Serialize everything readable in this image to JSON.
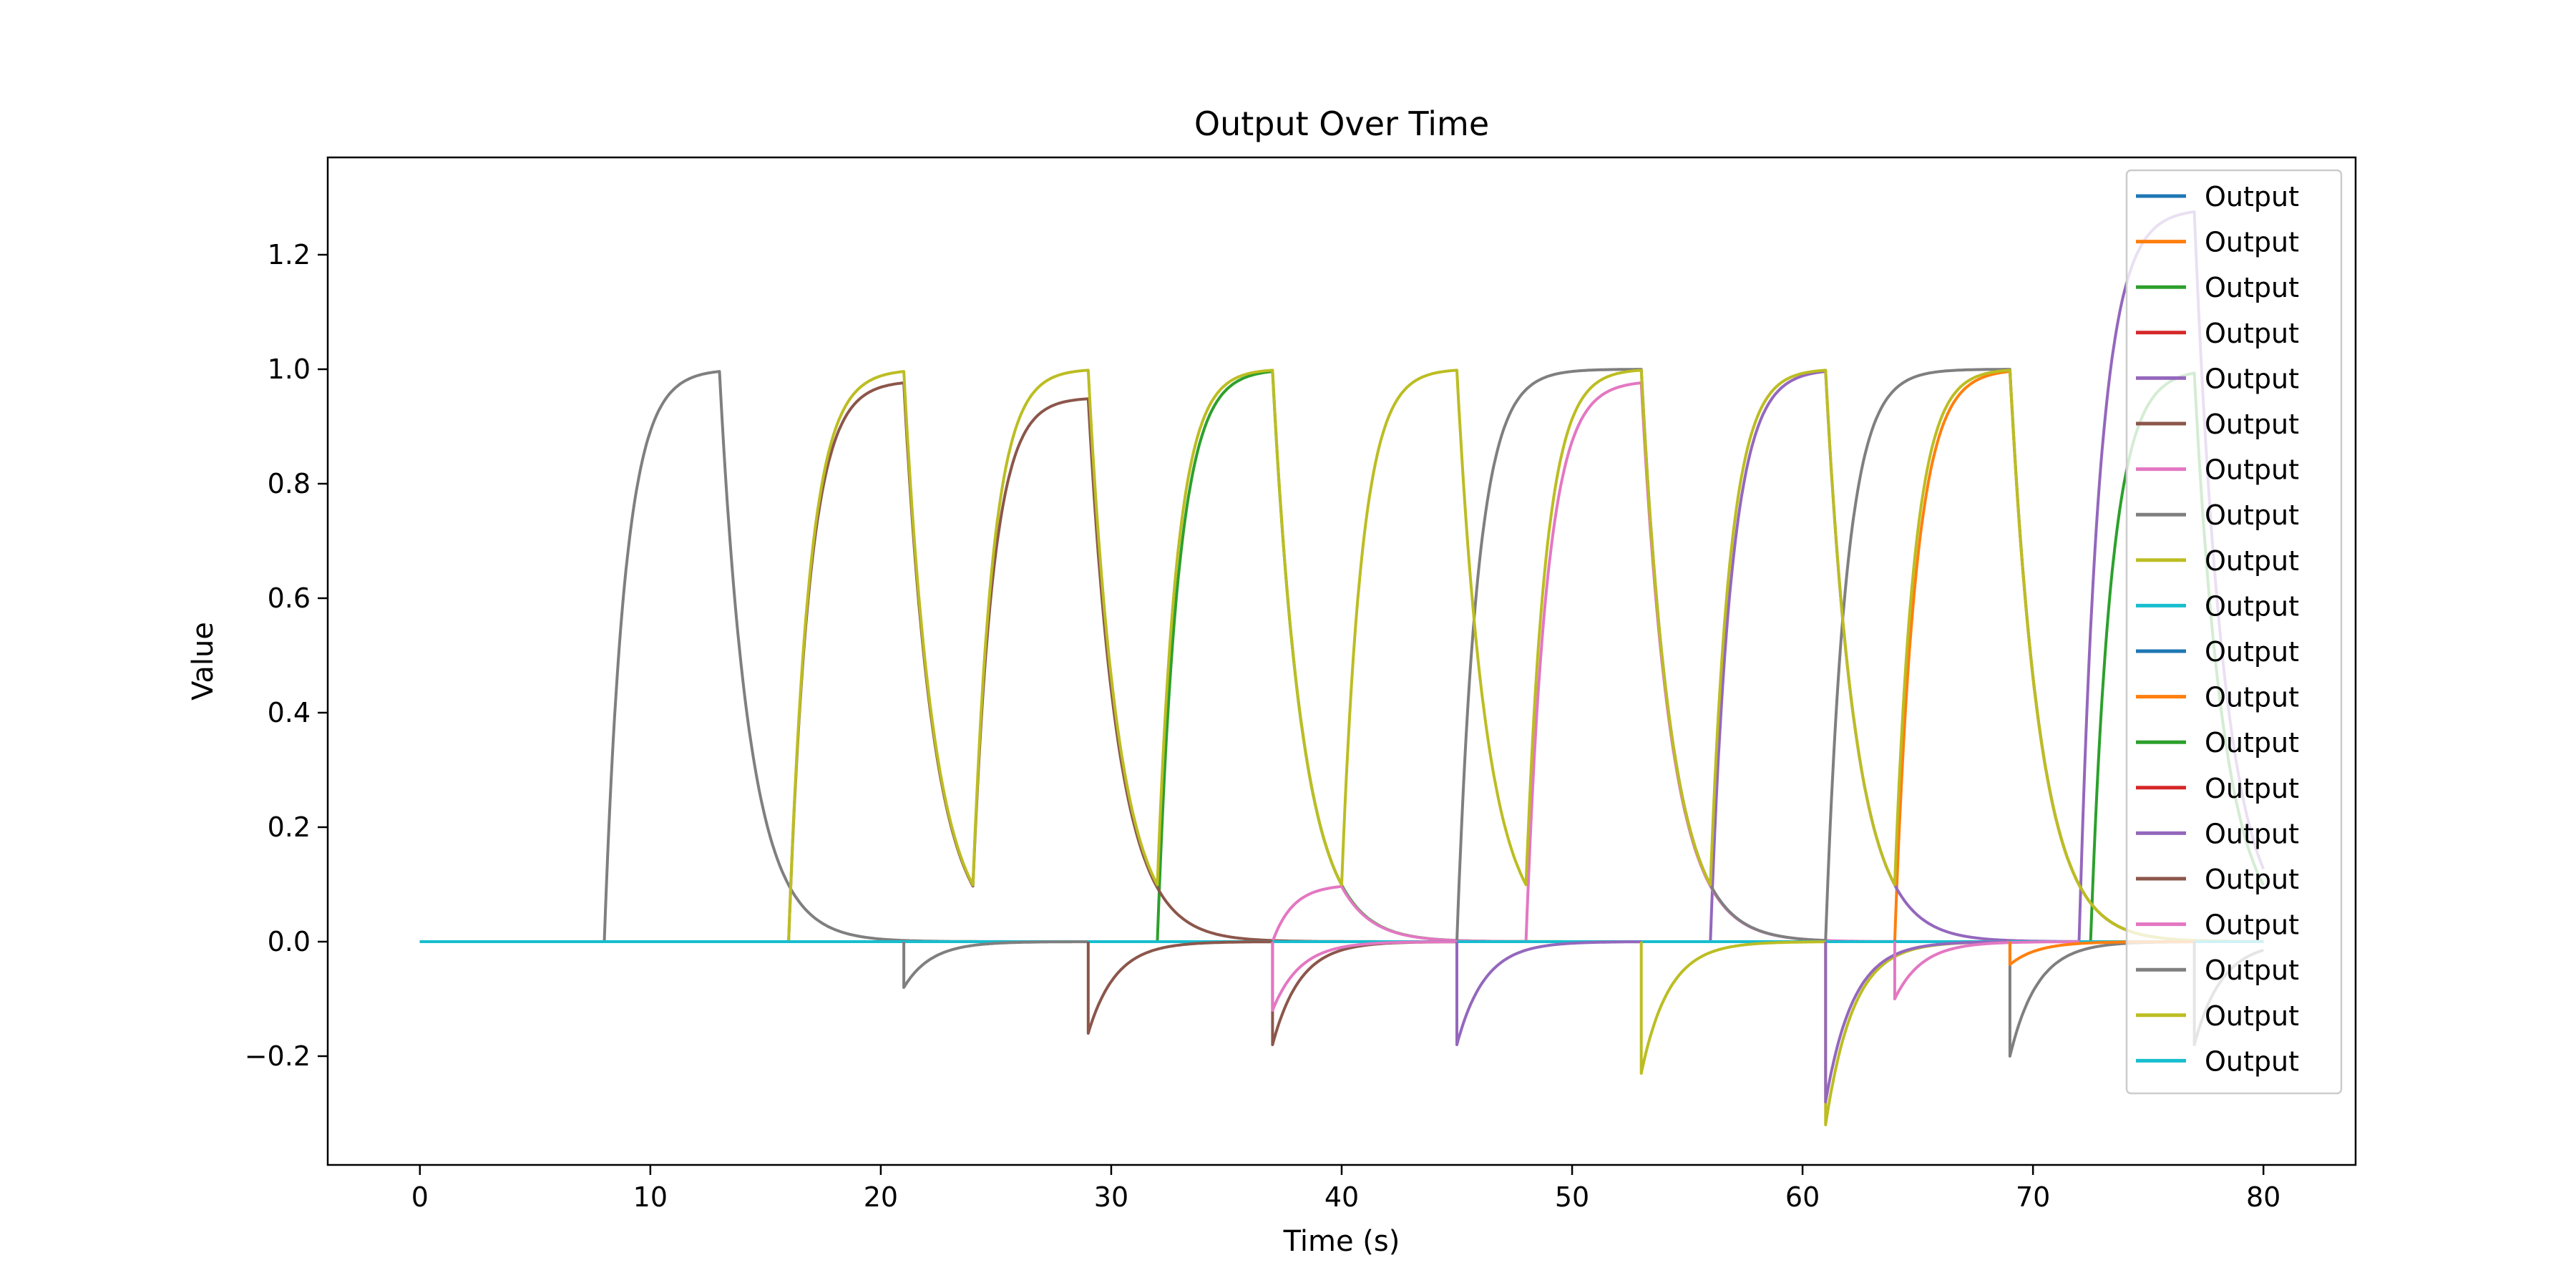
{
  "chart_data": {
    "type": "line",
    "title": "Output Over Time",
    "xlabel": "Time (s)",
    "ylabel": "Value",
    "xlim": [
      -4,
      84
    ],
    "ylim": [
      -0.39,
      1.37
    ],
    "x_ticks": [
      0,
      10,
      20,
      30,
      40,
      50,
      60,
      70,
      80
    ],
    "x_tick_labels": [
      "0",
      "10",
      "20",
      "30",
      "40",
      "50",
      "60",
      "70",
      "80"
    ],
    "y_ticks": [
      -0.2,
      0.0,
      0.2,
      0.4,
      0.6,
      0.8,
      1.0,
      1.2
    ],
    "y_tick_labels": [
      "−0.2",
      "0.0",
      "0.2",
      "0.4",
      "0.6",
      "0.8",
      "1.0",
      "1.2"
    ],
    "grid": false,
    "legend_position": "top-right",
    "time_constant_rise": 0.9,
    "time_constant_decay": 1.3,
    "series": [
      {
        "name": "Output",
        "color": "#1f77b4",
        "pulses": []
      },
      {
        "name": "Output",
        "color": "#ff7f0e",
        "pulses": [
          {
            "start": 64,
            "end": 69,
            "amp": 1.0
          }
        ]
      },
      {
        "name": "Output",
        "color": "#2ca02c",
        "pulses": [
          {
            "start": 32,
            "end": 37,
            "amp": 1.0
          },
          {
            "start": 72.5,
            "end": 77,
            "amp": 1.0
          }
        ]
      },
      {
        "name": "Output",
        "color": "#d62728",
        "pulses": []
      },
      {
        "name": "Output",
        "color": "#9467bd",
        "pulses": [
          {
            "start": 56,
            "end": 61,
            "amp": 1.0
          },
          {
            "start": 72,
            "end": 77,
            "amp": 1.28
          }
        ]
      },
      {
        "name": "Output",
        "color": "#8c564b",
        "pulses": [
          {
            "start": 16,
            "end": 21,
            "amp": 0.98
          },
          {
            "start": 24,
            "end": 29,
            "amp": 0.95
          }
        ]
      },
      {
        "name": "Output",
        "color": "#e377c2",
        "pulses": [
          {
            "start": 37,
            "end": 40,
            "amp": 0.1
          },
          {
            "start": 48,
            "end": 53,
            "amp": 0.98
          }
        ]
      },
      {
        "name": "Output",
        "color": "#7f7f7f",
        "pulses": [
          {
            "start": 8,
            "end": 13,
            "amp": 1.0
          },
          {
            "start": 45,
            "end": 53,
            "amp": 1.0
          },
          {
            "start": 61,
            "end": 69,
            "amp": 1.0
          }
        ]
      },
      {
        "name": "Output",
        "color": "#bcbd22",
        "pulses": [
          {
            "start": 16,
            "end": 21,
            "amp": 1.0
          },
          {
            "start": 24,
            "end": 29,
            "amp": 1.0
          },
          {
            "start": 32,
            "end": 37,
            "amp": 1.0
          },
          {
            "start": 40,
            "end": 45,
            "amp": 1.0
          },
          {
            "start": 48,
            "end": 53,
            "amp": 1.0
          },
          {
            "start": 56,
            "end": 61,
            "amp": 1.0
          },
          {
            "start": 64,
            "end": 69,
            "amp": 1.0
          }
        ]
      },
      {
        "name": "Output",
        "color": "#17becf",
        "pulses": []
      },
      {
        "name": "Output",
        "color": "#1f77b4",
        "pulses": []
      },
      {
        "name": "Output",
        "color": "#ff7f0e",
        "pulses": []
      },
      {
        "name": "Output",
        "color": "#2ca02c",
        "pulses": []
      },
      {
        "name": "Output",
        "color": "#d62728",
        "pulses": []
      },
      {
        "name": "Output",
        "color": "#9467bd",
        "pulses": []
      },
      {
        "name": "Output",
        "color": "#8c564b",
        "pulses": []
      },
      {
        "name": "Output",
        "color": "#e377c2",
        "pulses": []
      },
      {
        "name": "Output",
        "color": "#7f7f7f",
        "pulses": []
      },
      {
        "name": "Output",
        "color": "#bcbd22",
        "pulses": []
      },
      {
        "name": "Output",
        "color": "#17becf",
        "pulses": []
      }
    ],
    "negative_dips": [
      {
        "t": 21,
        "amp": -0.08,
        "color": "#7f7f7f"
      },
      {
        "t": 29,
        "amp": -0.16,
        "color": "#8c564b"
      },
      {
        "t": 37,
        "amp": -0.18,
        "color": "#8c564b"
      },
      {
        "t": 37,
        "amp": -0.12,
        "color": "#e377c2"
      },
      {
        "t": 45,
        "amp": -0.18,
        "color": "#9467bd"
      },
      {
        "t": 53,
        "amp": -0.23,
        "color": "#bcbd22"
      },
      {
        "t": 61,
        "amp": -0.32,
        "color": "#bcbd22"
      },
      {
        "t": 61,
        "amp": -0.28,
        "color": "#9467bd"
      },
      {
        "t": 64,
        "amp": -0.1,
        "color": "#e377c2"
      },
      {
        "t": 69,
        "amp": -0.2,
        "color": "#7f7f7f"
      },
      {
        "t": 69,
        "amp": -0.04,
        "color": "#ff7f0e"
      },
      {
        "t": 77,
        "amp": -0.18,
        "color": "#7f7f7f"
      }
    ]
  }
}
